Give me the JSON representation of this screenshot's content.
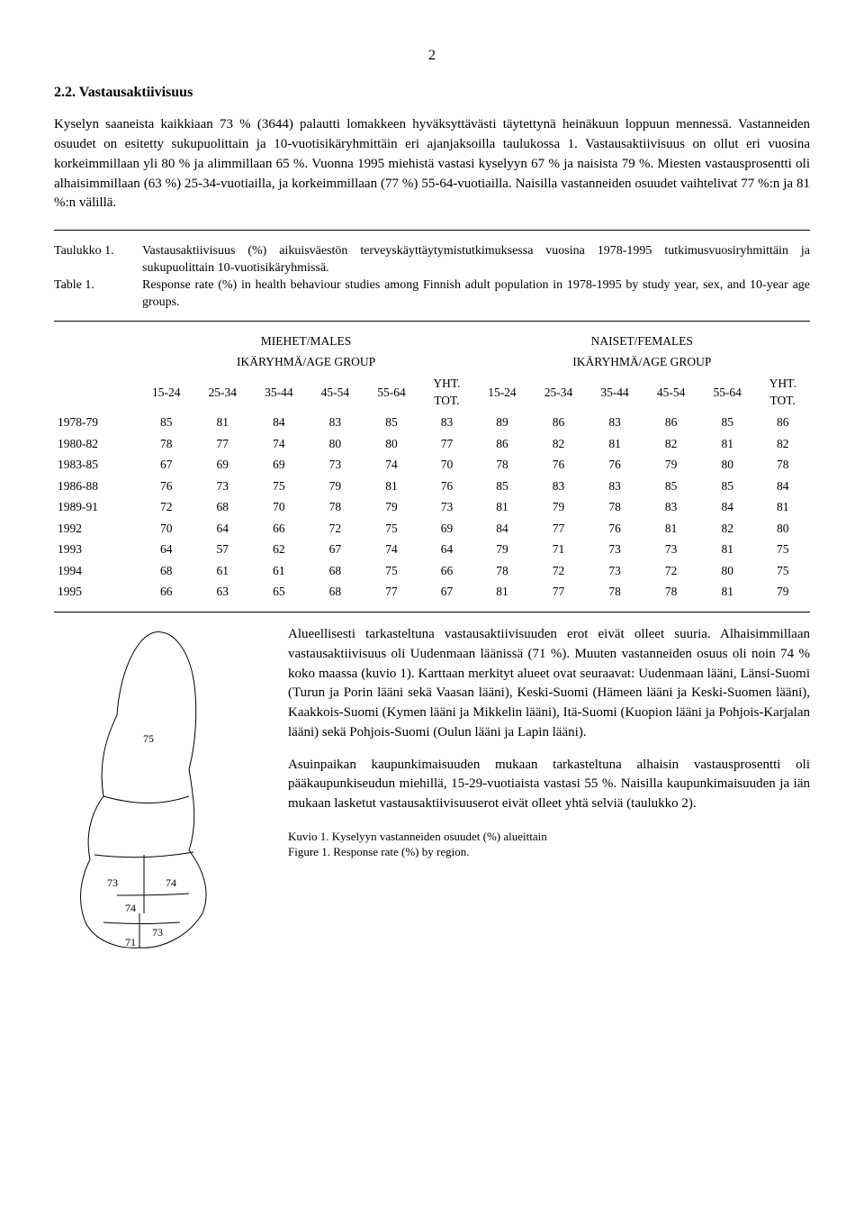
{
  "page_number": "2",
  "heading": "2.2. Vastausaktiivisuus",
  "intro_paragraph": "Kyselyn saaneista kaikkiaan 73 % (3644) palautti lomakkeen hyväksyttävästi täytettynä heinäkuun loppuun mennessä. Vastanneiden osuudet on esitetty sukupuolittain ja 10-vuotisikäryhmittäin eri ajanjaksoilla taulukossa 1. Vastausaktiivisuus on ollut eri vuosina korkeimmillaan yli 80 % ja alimmillaan 65 %. Vuonna 1995 miehistä vastasi kyselyyn 67 % ja naisista 79 %. Miesten vastausprosentti oli alhaisimmillaan (63 %) 25-34-vuotiailla, ja korkeimmillaan (77 %) 55-64-vuotiailla. Naisilla vastanneiden osuudet vaihtelivat 77 %:n ja 81 %:n välillä.",
  "caption_fi_label": "Taulukko 1.",
  "caption_fi_text": "Vastausaktiivisuus (%) aikuisväestön terveyskäyttäytymistutkimuksessa vuosina 1978-1995 tutkimusvuosiryhmittäin ja sukupuolittain 10-vuotisikäryhmissä.",
  "caption_en_label": "Table 1.",
  "caption_en_text": "Response rate (%) in health behaviour studies among Finnish adult population in 1978-1995 by study year, sex, and 10-year age groups.",
  "table": {
    "group_male": "MIEHET/MALES",
    "group_female": "NAISET/FEMALES",
    "subgroup_label": "IKÄRYHMÄ/AGE GROUP",
    "columns": [
      "15-24",
      "25-34",
      "35-44",
      "45-54",
      "55-64",
      "YHT.\nTOT.",
      "15-24",
      "25-34",
      "35-44",
      "45-54",
      "55-64",
      "YHT.\nTOT."
    ],
    "rows": [
      {
        "label": "1978-79",
        "v": [
          "85",
          "81",
          "84",
          "83",
          "85",
          "83",
          "89",
          "86",
          "83",
          "86",
          "85",
          "86"
        ]
      },
      {
        "label": "1980-82",
        "v": [
          "78",
          "77",
          "74",
          "80",
          "80",
          "77",
          "86",
          "82",
          "81",
          "82",
          "81",
          "82"
        ]
      },
      {
        "label": "1983-85",
        "v": [
          "67",
          "69",
          "69",
          "73",
          "74",
          "70",
          "78",
          "76",
          "76",
          "79",
          "80",
          "78"
        ]
      },
      {
        "label": "1986-88",
        "v": [
          "76",
          "73",
          "75",
          "79",
          "81",
          "76",
          "85",
          "83",
          "83",
          "85",
          "85",
          "84"
        ]
      },
      {
        "label": "1989-91",
        "v": [
          "72",
          "68",
          "70",
          "78",
          "79",
          "73",
          "81",
          "79",
          "78",
          "83",
          "84",
          "81"
        ]
      },
      {
        "label": "1992",
        "v": [
          "70",
          "64",
          "66",
          "72",
          "75",
          "69",
          "84",
          "77",
          "76",
          "81",
          "82",
          "80"
        ]
      },
      {
        "label": "1993",
        "v": [
          "64",
          "57",
          "62",
          "67",
          "74",
          "64",
          "79",
          "71",
          "73",
          "73",
          "81",
          "75"
        ]
      },
      {
        "label": "1994",
        "v": [
          "68",
          "61",
          "61",
          "68",
          "75",
          "66",
          "78",
          "72",
          "73",
          "72",
          "80",
          "75"
        ]
      },
      {
        "label": "1995",
        "v": [
          "66",
          "63",
          "65",
          "68",
          "77",
          "67",
          "81",
          "77",
          "78",
          "78",
          "81",
          "79"
        ]
      }
    ]
  },
  "para_regional": "Alueellisesti tarkasteltuna vastausaktiivisuuden erot eivät olleet suuria. Alhaisimmillaan vastausaktiivisuus oli Uudenmaan läänissä (71 %). Muuten vastanneiden osuus oli noin 74 % koko maassa (kuvio 1). Karttaan merkityt alueet ovat seuraavat: Uudenmaan lääni, Länsi-Suomi (Turun ja Porin lääni sekä Vaasan lääni), Keski-Suomi (Hämeen lääni ja Keski-Suomen lääni), Kaakkois-Suomi (Kymen lääni ja Mikkelin lääni), Itä-Suomi (Kuopion lääni ja Pohjois-Karjalan lääni) sekä Pohjois-Suomi (Oulun lääni ja Lapin lääni).",
  "para_urban": "Asuinpaikan kaupunkimaisuuden mukaan tarkasteltuna alhaisin vastausprosentti oli pääkaupunkiseudun miehillä, 15-29-vuotiaista vastasi 55 %. Naisilla kaupunkimaisuuden ja iän mukaan lasketut vastausaktiivisuuserot eivät olleet yhtä selviä (taulukko 2).",
  "fig_caption_fi": "Kuvio 1. Kyselyyn vastanneiden osuudet (%) alueittain",
  "fig_caption_en": "Figure 1. Response rate (%) by region.",
  "map_values": {
    "north": "75",
    "west": "73",
    "center": "74",
    "east": "74",
    "southcenter": "73",
    "south": "71"
  }
}
